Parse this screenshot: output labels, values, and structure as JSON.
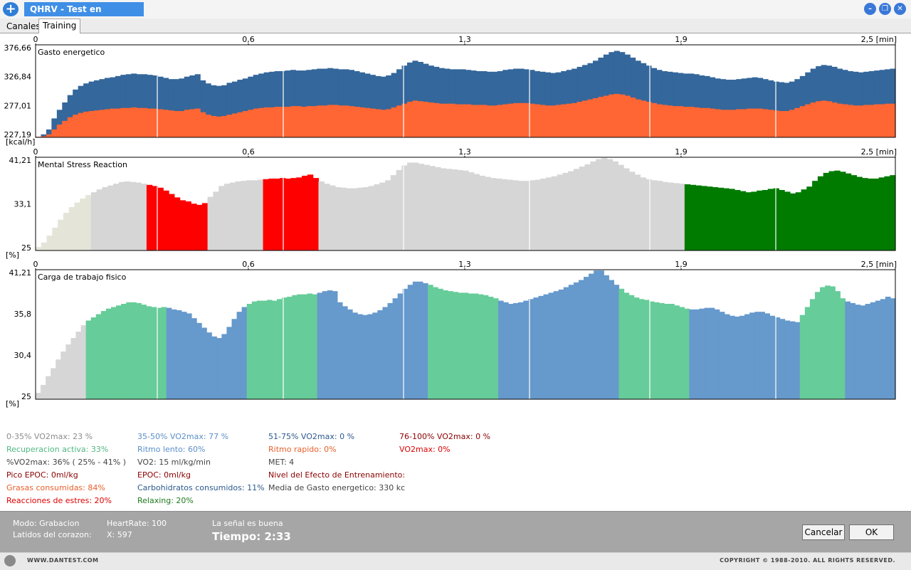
{
  "window": {
    "title": "QHRV - Test en progreso",
    "icons": {
      "app": "plus-icon",
      "minimize": "minimize-icon",
      "restore": "restore-icon",
      "close": "close-icon"
    }
  },
  "tabs": [
    {
      "label": "Canales",
      "active": false
    },
    {
      "label": "Training",
      "active": true
    }
  ],
  "x_axis": {
    "ticks": [
      "0",
      "0,6",
      "1,3",
      "1,9",
      "2,5 [min]"
    ]
  },
  "chart_data": [
    {
      "type": "area",
      "title": "Gasto energetico",
      "unit": "[kcal/h]",
      "yticks": [
        "376,66",
        "326,84",
        "277,01",
        "227,19"
      ],
      "ylim": [
        227.19,
        376.66
      ],
      "colors": {
        "top": "#34679b",
        "bottom": "#ff6633"
      },
      "series": [
        {
          "values": [
            228,
            232,
            240,
            258,
            272,
            284,
            296,
            305,
            311,
            315,
            318,
            320,
            322,
            324,
            325,
            327,
            329,
            330,
            331,
            330,
            330,
            329,
            328,
            326,
            324,
            322,
            322,
            323,
            326,
            328,
            330,
            320,
            315,
            312,
            311,
            312,
            316,
            318,
            321,
            323,
            326,
            329,
            331,
            333,
            334,
            335,
            335,
            336,
            337,
            336,
            336,
            337,
            338,
            339,
            339,
            340,
            339,
            338,
            338,
            337,
            335,
            333,
            331,
            329,
            327,
            326,
            328,
            332,
            338,
            344,
            349,
            352,
            350,
            347,
            344,
            342,
            340,
            339,
            338,
            338,
            338,
            337,
            336,
            335,
            335,
            334,
            334,
            335,
            337,
            338,
            339,
            339,
            338,
            337,
            335,
            334,
            333,
            332,
            333,
            335,
            337,
            339,
            342,
            345,
            348,
            352,
            357,
            362,
            366,
            368,
            366,
            362,
            357,
            352,
            348,
            344,
            340,
            337,
            335,
            334,
            333,
            332,
            331,
            331,
            330,
            328,
            327,
            325,
            323,
            322,
            321,
            321,
            322,
            323,
            324,
            325,
            324,
            322,
            320,
            318,
            317,
            316,
            318,
            322,
            327,
            333,
            339,
            343,
            345,
            344,
            342,
            339,
            337,
            335,
            334,
            333,
            334,
            335,
            336,
            337,
            338,
            339
          ]
        },
        {
          "values": [
            228,
            229,
            232,
            240,
            248,
            254,
            260,
            264,
            267,
            269,
            270,
            271,
            272,
            273,
            274,
            274,
            275,
            275,
            276,
            275,
            275,
            274,
            274,
            273,
            272,
            271,
            270,
            270,
            272,
            273,
            274,
            268,
            264,
            262,
            261,
            262,
            264,
            266,
            268,
            270,
            272,
            274,
            275,
            276,
            276,
            277,
            277,
            277,
            278,
            278,
            277,
            278,
            278,
            279,
            279,
            280,
            280,
            279,
            279,
            278,
            277,
            276,
            275,
            274,
            273,
            272,
            273,
            276,
            279,
            282,
            285,
            287,
            286,
            285,
            284,
            283,
            282,
            282,
            282,
            281,
            281,
            281,
            280,
            280,
            280,
            279,
            279,
            280,
            281,
            282,
            283,
            283,
            283,
            282,
            281,
            280,
            279,
            279,
            280,
            281,
            282,
            283,
            285,
            287,
            289,
            291,
            293,
            295,
            297,
            298,
            297,
            295,
            292,
            289,
            287,
            285,
            283,
            281,
            280,
            279,
            278,
            278,
            277,
            277,
            276,
            275,
            275,
            274,
            273,
            272,
            272,
            272,
            273,
            273,
            274,
            274,
            274,
            273,
            272,
            271,
            270,
            270,
            272,
            275,
            278,
            281,
            284,
            286,
            287,
            286,
            284,
            282,
            281,
            280,
            279,
            279,
            280,
            280,
            281,
            281,
            282,
            282
          ]
        }
      ]
    },
    {
      "type": "bar",
      "title": "Mental Stress Reaction",
      "unit": "[%]",
      "yticks": [
        "41,21",
        "33,1",
        "25"
      ],
      "ylim": [
        25,
        41.21
      ],
      "colors": [
        "#e4e4d8",
        "#d6d6d6",
        "#ff0000",
        "#007b00"
      ],
      "values": [
        25.6,
        26.4,
        27.6,
        29.0,
        30.4,
        31.6,
        32.6,
        33.4,
        34.1,
        34.7,
        35.2,
        35.7,
        36.1,
        36.4,
        36.7,
        37.0,
        37.1,
        37.0,
        36.9,
        36.7,
        36.5,
        36.3,
        36.0,
        35.5,
        34.9,
        34.3,
        33.8,
        33.6,
        33.2,
        33.0,
        33.3,
        34.4,
        35.3,
        36.3,
        36.7,
        36.9,
        37.1,
        37.2,
        37.3,
        37.3,
        37.4,
        37.5,
        37.6,
        37.6,
        37.7,
        37.6,
        37.7,
        37.8,
        38.1,
        38.3,
        37.7,
        37.1,
        36.7,
        36.4,
        36.1,
        36.0,
        35.9,
        35.9,
        36.0,
        36.1,
        36.3,
        36.6,
        36.9,
        37.3,
        38.2,
        39.1,
        39.9,
        40.4,
        40.4,
        40.2,
        40.0,
        39.8,
        39.6,
        39.4,
        39.3,
        39.2,
        39.1,
        39.0,
        38.7,
        38.4,
        38.1,
        37.9,
        37.7,
        37.6,
        37.5,
        37.4,
        37.3,
        37.2,
        37.2,
        37.3,
        37.4,
        37.6,
        37.8,
        38.0,
        38.3,
        38.6,
        38.9,
        39.3,
        39.7,
        40.1,
        40.6,
        41.0,
        41.2,
        41.0,
        40.6,
        40.0,
        39.4,
        38.8,
        38.3,
        37.8,
        37.5,
        37.3,
        37.2,
        37.0,
        36.9,
        36.8,
        36.7,
        36.6,
        36.5,
        36.4,
        36.3,
        36.2,
        36.1,
        36.0,
        35.9,
        35.8,
        35.6,
        35.4,
        35.2,
        35.3,
        35.5,
        35.6,
        35.8,
        35.9,
        35.6,
        35.3,
        35.0,
        35.2,
        35.7,
        36.2,
        37.2,
        38.0,
        38.6,
        38.9,
        39.0,
        38.8,
        38.5,
        38.2,
        37.9,
        37.7,
        37.6,
        37.6,
        37.8,
        38.0,
        38.2
      ],
      "segments": [
        0,
        0,
        0,
        0,
        0,
        0,
        0,
        0,
        0,
        0,
        0,
        0,
        0,
        0,
        1,
        1,
        1,
        1,
        1,
        1,
        1,
        1,
        1,
        1,
        1,
        1,
        1,
        1,
        1,
        2,
        2,
        2,
        2,
        2,
        2,
        2,
        2,
        2,
        2,
        2,
        2,
        2,
        2,
        2,
        1,
        1,
        1,
        1,
        1,
        1,
        1,
        1,
        1,
        1,
        1,
        1,
        1,
        1,
        1,
        2,
        2,
        2,
        2,
        2,
        2,
        2,
        2,
        2,
        2,
        2,
        2,
        2,
        2,
        2,
        1,
        1,
        1,
        1,
        1,
        1,
        1,
        1,
        1,
        1,
        1,
        1,
        1,
        1,
        1,
        1,
        1,
        1,
        1,
        1,
        1,
        1,
        1,
        1,
        1,
        1,
        1,
        1,
        1,
        1,
        1,
        1,
        1,
        1,
        1,
        1,
        1,
        1,
        1,
        1,
        1,
        1,
        1,
        1,
        1,
        1,
        1,
        1,
        1,
        1,
        1,
        1,
        1,
        1,
        1,
        1,
        1,
        1,
        1,
        1,
        1,
        1,
        1,
        1,
        1,
        1,
        1,
        1,
        1,
        1,
        1,
        1,
        1,
        1,
        1,
        1,
        1,
        1,
        1,
        1,
        1,
        1,
        1,
        1,
        1,
        1,
        1,
        1,
        1,
        1,
        1,
        1,
        1,
        1,
        1,
        3,
        3,
        3,
        3,
        3,
        3,
        3,
        3,
        3,
        3,
        3,
        3,
        3,
        3,
        3,
        3,
        3,
        3,
        3,
        3,
        3,
        3,
        3,
        3,
        3,
        3,
        3,
        3,
        3,
        3,
        3,
        3,
        3,
        3,
        3,
        3,
        3,
        3,
        3,
        3,
        3,
        3,
        3,
        3,
        3,
        3,
        3,
        3,
        3,
        3,
        3,
        3,
        3,
        3,
        3,
        3
      ]
    },
    {
      "type": "bar",
      "title": "Carga de trabajo fisico",
      "unit": "[%]",
      "yticks": [
        "41,21",
        "35,8",
        "30,4",
        "25"
      ],
      "ylim": [
        25,
        41.21
      ],
      "colors": [
        "#d6d6d6",
        "#66cc99",
        "#6699cc"
      ],
      "values": [
        25.8,
        26.8,
        27.9,
        28.9,
        30.0,
        31.0,
        31.9,
        32.7,
        33.5,
        34.3,
        34.9,
        35.3,
        35.7,
        36.1,
        36.4,
        36.6,
        36.8,
        37.0,
        37.2,
        37.2,
        37.1,
        36.9,
        36.7,
        36.6,
        36.5,
        36.6,
        36.5,
        36.3,
        36.2,
        36.0,
        35.8,
        35.2,
        34.6,
        34.0,
        33.4,
        32.9,
        32.7,
        33.2,
        34.1,
        35.1,
        36.0,
        36.6,
        37.0,
        37.3,
        37.4,
        37.4,
        37.5,
        37.4,
        37.6,
        37.8,
        37.9,
        38.1,
        38.2,
        38.2,
        38.3,
        38.2,
        38.4,
        38.6,
        38.7,
        38.6,
        37.2,
        36.7,
        36.3,
        35.9,
        35.7,
        35.6,
        35.7,
        35.9,
        36.2,
        36.6,
        37.1,
        37.7,
        38.3,
        38.9,
        39.4,
        39.8,
        39.8,
        39.6,
        39.4,
        39.1,
        38.9,
        38.7,
        38.6,
        38.5,
        38.4,
        38.4,
        38.3,
        38.3,
        38.2,
        38.1,
        37.9,
        37.7,
        37.4,
        37.2,
        37.0,
        37.1,
        37.2,
        37.4,
        37.6,
        37.8,
        38.0,
        38.2,
        38.4,
        38.6,
        38.8,
        39.1,
        39.4,
        39.7,
        40.0,
        40.4,
        40.8,
        41.2,
        41.2,
        40.6,
        40.0,
        39.4,
        38.9,
        38.4,
        38.1,
        37.8,
        37.6,
        37.5,
        37.3,
        37.2,
        37.1,
        37.0,
        37.0,
        36.8,
        36.6,
        36.4,
        36.3,
        36.3,
        36.4,
        36.5,
        36.5,
        36.3,
        36.0,
        35.7,
        35.5,
        35.4,
        35.5,
        35.7,
        35.9,
        36.0,
        36.0,
        35.8,
        35.5,
        35.3,
        35.1,
        34.9,
        34.8,
        34.7,
        35.6,
        36.6,
        37.6,
        38.5,
        39.1,
        39.3,
        39.2,
        38.6,
        37.7,
        37.3,
        37.1,
        36.9,
        36.8,
        37.0,
        37.2,
        37.4,
        37.6,
        37.9,
        37.7
      ],
      "segments": [
        0,
        0,
        0,
        0,
        0,
        0,
        0,
        0,
        0,
        0,
        1,
        1,
        1,
        1,
        1,
        1,
        1,
        1,
        1,
        1,
        1,
        1,
        1,
        1,
        1,
        1,
        1,
        1,
        2,
        2,
        2,
        2,
        2,
        2,
        2,
        2,
        2,
        2,
        2,
        2,
        2,
        2,
        2,
        2,
        2,
        1,
        1,
        1,
        1,
        1,
        1,
        1,
        1,
        1,
        1,
        1,
        1,
        1,
        1,
        1,
        2,
        2,
        2,
        2,
        2,
        2,
        2,
        2,
        2,
        2,
        2,
        2,
        2,
        2,
        2,
        2,
        2,
        2,
        2,
        2,
        2,
        2,
        2,
        2,
        1,
        1,
        1,
        1,
        1,
        1,
        1,
        1,
        1,
        1,
        1,
        1,
        1,
        1,
        1,
        1,
        2,
        2,
        2,
        2,
        2,
        2,
        2,
        2,
        2,
        2,
        2,
        2,
        2,
        2,
        2,
        2,
        2,
        2,
        2,
        2,
        2,
        2,
        2,
        2,
        2,
        2,
        1,
        1,
        1,
        1,
        1,
        1,
        1,
        1,
        1,
        1,
        1,
        1,
        1,
        1,
        1,
        2,
        2,
        2,
        2,
        2,
        2,
        2,
        2,
        2,
        2,
        2,
        2,
        2,
        2,
        2,
        2,
        2,
        2,
        2,
        2,
        2,
        2,
        2,
        2,
        1,
        1,
        1,
        1,
        1,
        1,
        1,
        1,
        1,
        1,
        2,
        2,
        2,
        2,
        2,
        2,
        2,
        2,
        2,
        2,
        0
      ]
    }
  ],
  "stats": [
    {
      "text": "0-35% VO2max: 23 %",
      "color": "#8c8c8c",
      "col": 0,
      "row": 0
    },
    {
      "text": "Recuperacion activa: 33%",
      "color": "#4fb880",
      "col": 0,
      "row": 1
    },
    {
      "text": "%VO2max: 36% ( 25% - 41% )",
      "color": "#444444",
      "col": 0,
      "row": 2
    },
    {
      "text": "Pico EPOC: 0ml/kg",
      "color": "#8b0000",
      "col": 0,
      "row": 3
    },
    {
      "text": "Grasas consumidas: 84%",
      "color": "#e8602c",
      "col": 0,
      "row": 4
    },
    {
      "text": "Reacciones de estres: 20%",
      "color": "#e00000",
      "col": 0,
      "row": 5
    },
    {
      "text": "35-50% VO2max: 77 %",
      "color": "#5b8fc8",
      "col": 1,
      "row": 0
    },
    {
      "text": "Ritmo lento: 60%",
      "color": "#5b8fc8",
      "col": 1,
      "row": 1
    },
    {
      "text": "VO2: 15 ml/kg/min",
      "color": "#444444",
      "col": 1,
      "row": 2
    },
    {
      "text": "EPOC: 0ml/kg",
      "color": "#8b0000",
      "col": 1,
      "row": 3
    },
    {
      "text": "Carbohidratos consumidos: 11%",
      "color": "#2c5a8c",
      "col": 1,
      "row": 4
    },
    {
      "text": "Relaxing: 20%",
      "color": "#1f7a1f",
      "col": 1,
      "row": 5
    },
    {
      "text": "51-75% VO2max: 0 %",
      "color": "#2c5a8c",
      "col": 2,
      "row": 0
    },
    {
      "text": "Ritmo rapido: 0%",
      "color": "#e8602c",
      "col": 2,
      "row": 1
    },
    {
      "text": "MET: 4",
      "color": "#444444",
      "col": 2,
      "row": 2
    },
    {
      "text": "Nivel del Efecto de Entrenamiento:",
      "color": "#8b0000",
      "col": 2,
      "row": 3
    },
    {
      "text": "Media de Gasto energetico: 330 kc",
      "color": "#444444",
      "col": 2,
      "row": 4
    },
    {
      "text": "76-100% VO2max: 0 %",
      "color": "#8b0000",
      "col": 3,
      "row": 0
    },
    {
      "text": "VO2max: 0%",
      "color": "#e00000",
      "col": 3,
      "row": 1
    }
  ],
  "status": {
    "modo": "Modo: Grabacion",
    "latidos": "Latidos del corazon:",
    "heartrate": "HeartRate: 100",
    "x": "X: 597",
    "signal": "La señal es buena",
    "tiempo": "Tiempo: 2:33"
  },
  "buttons": {
    "cancel": "Cancelar",
    "ok": "OK"
  },
  "footer": {
    "website": "WWW.DANTEST.COM",
    "copyright": "COPYRIGHT © 1988-2010. ALL RIGHTS RESERVED."
  }
}
